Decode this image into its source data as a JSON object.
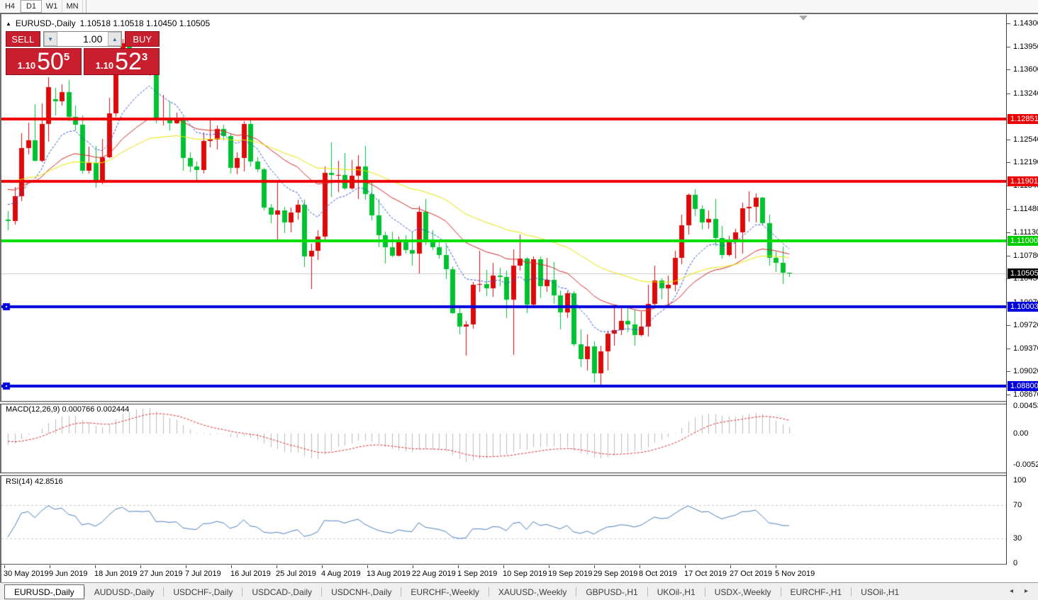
{
  "toolbar": {
    "timeframes": [
      {
        "label": "H4",
        "active": false
      },
      {
        "label": "D1",
        "active": true
      },
      {
        "label": "W1",
        "active": false
      },
      {
        "label": "MN",
        "active": false
      }
    ]
  },
  "chart_header": {
    "collapse_icon": "▲",
    "title": "EURUSD-,Daily",
    "ohlc_text": "1.10518 1.10518 1.10450 1.10505"
  },
  "trade_panel": {
    "sell_label": "SELL",
    "buy_label": "BUY",
    "volume": "1.00",
    "spin_down_icon": "▼",
    "spin_up_icon": "▲",
    "sell_price_prefix": "1.10",
    "sell_price_big": "50",
    "sell_price_sup": "5",
    "buy_price_prefix": "1.10",
    "buy_price_big": "52",
    "buy_price_sup": "3"
  },
  "chart_data": {
    "type": "candlestick",
    "symbol": "EURUSD-",
    "timeframe": "Daily",
    "colors": {
      "bull": "#dd0a0a",
      "bear": "#00c230",
      "ma_fast": "#2e4fd6",
      "ma_mid": "#d42a2a",
      "ma_slow": "#e6e600",
      "current_price_line": "#c9c9c9",
      "macd_histogram": "#bbbbbb",
      "macd_signal": "#e03030",
      "rsi_line": "#4a7ebb",
      "rsi_levels": "#c8c8c8"
    },
    "moving_averages": [
      {
        "period": 10,
        "style": "dashed",
        "color_key": "ma_fast"
      },
      {
        "period": 25,
        "style": "solid",
        "color_key": "ma_mid"
      },
      {
        "period": 48,
        "style": "solid",
        "color_key": "ma_slow"
      }
    ],
    "y_axis": {
      "ticks": [
        "1.14300",
        "1.13950",
        "1.13600",
        "1.13240",
        "1.12540",
        "1.12190",
        "1.11840",
        "1.11480",
        "1.11130",
        "1.10780",
        "1.10430",
        "1.10070",
        "1.09720",
        "1.09370",
        "1.09020",
        "1.08670"
      ],
      "top": 1.143,
      "bottom": 1.0867
    },
    "x_axis": {
      "labels": [
        "30 May 2019",
        "9 Jun 2019",
        "18 Jun 2019",
        "27 Jun 2019",
        "7 Jul 2019",
        "16 Jul 2019",
        "25 Jul 2019",
        "4 Aug 2019",
        "13 Aug 2019",
        "22 Aug 2019",
        "1 Sep 2019",
        "10 Sep 2019",
        "19 Sep 2019",
        "29 Sep 2019",
        "8 Oct 2019",
        "17 Oct 2019",
        "27 Oct 2019",
        "5 Nov 2019"
      ]
    },
    "price_badges": [
      {
        "label": "1.12851",
        "price": 1.12851,
        "color": "#ee0000"
      },
      {
        "label": "1.11901",
        "price": 1.11901,
        "color": "#ee0000"
      },
      {
        "label": "1.11000",
        "price": 1.11,
        "color": "#00cc00"
      },
      {
        "label": "1.10505",
        "price": 1.10505,
        "color": "#000000"
      },
      {
        "label": "1.10003",
        "price": 1.10003,
        "color": "#0000dd"
      },
      {
        "label": "1.08800",
        "price": 1.088,
        "color": "#0000dd"
      }
    ],
    "hlines": [
      {
        "price": 1.12851,
        "color": "#ee0000",
        "thickness": 4,
        "anchor": false
      },
      {
        "price": 1.11901,
        "color": "#ee0000",
        "thickness": 4,
        "anchor": false
      },
      {
        "price": 1.11,
        "color": "#00dd00",
        "thickness": 4,
        "anchor": false
      },
      {
        "price": 1.10003,
        "color": "#0000dd",
        "thickness": 4,
        "anchor": true
      },
      {
        "price": 1.088,
        "color": "#0000dd",
        "thickness": 4,
        "anchor": true
      }
    ],
    "current_price": 1.10505,
    "history_closes": [
      1.1217,
      1.1196,
      1.1185,
      1.12,
      1.1192,
      1.1215,
      1.1211,
      1.1203,
      1.1224,
      1.1206,
      1.1185,
      1.1179,
      1.1162,
      1.1158,
      1.1171,
      1.118,
      1.1166,
      1.1151,
      1.1139,
      1.1128
    ],
    "ohlc": [
      [
        "30 May",
        1.1132,
        1.1145,
        1.1116,
        1.113
      ],
      [
        "31 May",
        1.113,
        1.1182,
        1.1125,
        1.1168
      ],
      [
        "3 Jun",
        1.1168,
        1.1263,
        1.116,
        1.1241
      ],
      [
        "4 Jun",
        1.1241,
        1.128,
        1.1231,
        1.1253
      ],
      [
        "5 Jun",
        1.1253,
        1.1307,
        1.122,
        1.1222
      ],
      [
        "6 Jun",
        1.1222,
        1.1309,
        1.1219,
        1.1277
      ],
      [
        "7 Jun",
        1.1277,
        1.1348,
        1.1251,
        1.1333
      ],
      [
        "10 Jun",
        1.1315,
        1.1332,
        1.129,
        1.1312
      ],
      [
        "11 Jun",
        1.1312,
        1.1338,
        1.1305,
        1.1326
      ],
      [
        "12 Jun",
        1.1326,
        1.1344,
        1.1282,
        1.1288
      ],
      [
        "13 Jun",
        1.1288,
        1.1305,
        1.1268,
        1.1276
      ],
      [
        "14 Jun",
        1.1276,
        1.129,
        1.1202,
        1.1207
      ],
      [
        "17 Jun",
        1.1207,
        1.1243,
        1.1202,
        1.1218
      ],
      [
        "18 Jun",
        1.1218,
        1.1244,
        1.1181,
        1.1193
      ],
      [
        "19 Jun",
        1.1193,
        1.1255,
        1.1186,
        1.1227
      ],
      [
        "20 Jun",
        1.1227,
        1.1317,
        1.1226,
        1.1294
      ],
      [
        "21 Jun",
        1.1294,
        1.1378,
        1.1288,
        1.1369
      ],
      [
        "24 Jun",
        1.1369,
        1.1406,
        1.1363,
        1.14
      ],
      [
        "25 Jun",
        1.14,
        1.1412,
        1.1359,
        1.1365
      ],
      [
        "26 Jun",
        1.1365,
        1.1391,
        1.1359,
        1.137
      ],
      [
        "27 Jun",
        1.137,
        1.1389,
        1.1361,
        1.1367
      ],
      [
        "28 Jun",
        1.1367,
        1.1391,
        1.1351,
        1.1373
      ],
      [
        "1 Jul",
        1.1365,
        1.1368,
        1.1279,
        1.1285
      ],
      [
        "2 Jul",
        1.1285,
        1.1322,
        1.1275,
        1.1286
      ],
      [
        "3 Jul",
        1.1286,
        1.1312,
        1.1268,
        1.1278
      ],
      [
        "4 Jul",
        1.1278,
        1.1295,
        1.1277,
        1.1283
      ],
      [
        "5 Jul",
        1.1283,
        1.1288,
        1.1207,
        1.1226
      ],
      [
        "8 Jul",
        1.1226,
        1.1234,
        1.1204,
        1.1213
      ],
      [
        "9 Jul",
        1.1213,
        1.122,
        1.1193,
        1.1208
      ],
      [
        "10 Jul",
        1.1208,
        1.1264,
        1.1202,
        1.1252
      ],
      [
        "11 Jul",
        1.1252,
        1.1286,
        1.1242,
        1.1254
      ],
      [
        "12 Jul",
        1.1254,
        1.1275,
        1.1239,
        1.127
      ],
      [
        "15 Jul",
        1.127,
        1.1276,
        1.1253,
        1.1259
      ],
      [
        "16 Jul",
        1.1259,
        1.1263,
        1.1202,
        1.1211
      ],
      [
        "17 Jul",
        1.1211,
        1.1234,
        1.1201,
        1.1226
      ],
      [
        "18 Jul",
        1.1226,
        1.1282,
        1.1205,
        1.1277
      ],
      [
        "19 Jul",
        1.1277,
        1.1283,
        1.1213,
        1.1221
      ],
      [
        "22 Jul",
        1.1221,
        1.1227,
        1.1204,
        1.1209
      ],
      [
        "23 Jul",
        1.1209,
        1.1211,
        1.1146,
        1.1151
      ],
      [
        "24 Jul",
        1.1151,
        1.1156,
        1.1127,
        1.114
      ],
      [
        "25 Jul",
        1.114,
        1.1188,
        1.1101,
        1.1146
      ],
      [
        "26 Jul",
        1.1146,
        1.1152,
        1.1112,
        1.1128
      ],
      [
        "29 Jul",
        1.1128,
        1.1151,
        1.1113,
        1.1143
      ],
      [
        "30 Jul",
        1.1143,
        1.1162,
        1.1132,
        1.1155
      ],
      [
        "31 Jul",
        1.1155,
        1.1162,
        1.106,
        1.1076
      ],
      [
        "1 Aug",
        1.1076,
        1.1096,
        1.1027,
        1.1085
      ],
      [
        "2 Aug",
        1.1085,
        1.1116,
        1.1071,
        1.1107
      ],
      [
        "5 Aug",
        1.1107,
        1.1213,
        1.1101,
        1.1203
      ],
      [
        "6 Aug",
        1.1203,
        1.125,
        1.1167,
        1.12
      ],
      [
        "7 Aug",
        1.12,
        1.1222,
        1.1174,
        1.12
      ],
      [
        "8 Aug",
        1.12,
        1.1233,
        1.1178,
        1.118
      ],
      [
        "9 Aug",
        1.118,
        1.1223,
        1.1178,
        1.1199
      ],
      [
        "12 Aug",
        1.1199,
        1.123,
        1.1163,
        1.1213
      ],
      [
        "13 Aug",
        1.1213,
        1.1244,
        1.1162,
        1.1171
      ],
      [
        "14 Aug",
        1.1171,
        1.1192,
        1.1131,
        1.1139
      ],
      [
        "15 Aug",
        1.1139,
        1.1163,
        1.109,
        1.1109
      ],
      [
        "16 Aug",
        1.1109,
        1.1114,
        1.1066,
        1.109
      ],
      [
        "19 Aug",
        1.109,
        1.1114,
        1.1075,
        1.1078
      ],
      [
        "20 Aug",
        1.1078,
        1.1107,
        1.1077,
        1.11
      ],
      [
        "21 Aug",
        1.11,
        1.1109,
        1.1081,
        1.1086
      ],
      [
        "22 Aug",
        1.1086,
        1.1113,
        1.1062,
        1.1081
      ],
      [
        "23 Aug",
        1.1081,
        1.1153,
        1.1051,
        1.1144
      ],
      [
        "26 Aug",
        1.1144,
        1.1164,
        1.1094,
        1.1101
      ],
      [
        "27 Aug",
        1.1101,
        1.1116,
        1.1086,
        1.1091
      ],
      [
        "28 Aug",
        1.1091,
        1.1098,
        1.1073,
        1.1079
      ],
      [
        "29 Aug",
        1.1079,
        1.1094,
        1.1042,
        1.1057
      ],
      [
        "30 Aug",
        1.1057,
        1.1061,
        1.0989,
        1.0991
      ],
      [
        "2 Sep",
        1.0991,
        1.0998,
        1.0958,
        1.097
      ],
      [
        "3 Sep",
        1.097,
        1.0979,
        1.0926,
        1.0973
      ],
      [
        "4 Sep",
        1.0973,
        1.1038,
        1.0967,
        1.1034
      ],
      [
        "5 Sep",
        1.1034,
        1.1085,
        1.1023,
        1.1035
      ],
      [
        "6 Sep",
        1.1035,
        1.1056,
        1.1016,
        1.1028
      ],
      [
        "9 Sep",
        1.1028,
        1.1067,
        1.1015,
        1.1048
      ],
      [
        "10 Sep",
        1.1048,
        1.1059,
        1.1031,
        1.1045
      ],
      [
        "11 Sep",
        1.1045,
        1.1055,
        1.0983,
        1.1011
      ],
      [
        "12 Sep",
        1.1011,
        1.1087,
        1.0927,
        1.1063
      ],
      [
        "13 Sep",
        1.1063,
        1.111,
        1.1055,
        1.1073
      ],
      [
        "16 Sep",
        1.1073,
        1.1075,
        1.0991,
        1.1003
      ],
      [
        "17 Sep",
        1.1003,
        1.1076,
        1.0998,
        1.1072
      ],
      [
        "18 Sep",
        1.1072,
        1.1076,
        1.1013,
        1.1031
      ],
      [
        "19 Sep",
        1.1031,
        1.1074,
        1.1023,
        1.1041
      ],
      [
        "20 Sep",
        1.1041,
        1.1068,
        1.1004,
        1.1017
      ],
      [
        "23 Sep",
        1.1017,
        1.1025,
        1.0966,
        1.0992
      ],
      [
        "24 Sep",
        1.0992,
        1.1024,
        1.0983,
        1.1021
      ],
      [
        "25 Sep",
        1.1021,
        1.1024,
        1.094,
        1.0943
      ],
      [
        "26 Sep",
        1.0943,
        1.0966,
        1.0909,
        1.0921
      ],
      [
        "27 Sep",
        1.0921,
        1.0958,
        1.0904,
        1.094
      ],
      [
        "30 Sep",
        1.094,
        1.0948,
        1.0885,
        1.0899
      ],
      [
        "1 Oct",
        1.0899,
        1.0941,
        1.0879,
        1.0932
      ],
      [
        "2 Oct",
        1.0932,
        1.0964,
        1.0903,
        1.0959
      ],
      [
        "3 Oct",
        1.0959,
        1.0999,
        1.0941,
        1.0965
      ],
      [
        "4 Oct",
        1.0965,
        1.0999,
        1.0957,
        1.0979
      ],
      [
        "7 Oct",
        1.0979,
        1.1,
        1.0962,
        1.0973
      ],
      [
        "8 Oct",
        1.0973,
        1.0996,
        1.0941,
        1.0957
      ],
      [
        "9 Oct",
        1.0957,
        1.0993,
        1.0955,
        1.097
      ],
      [
        "10 Oct",
        1.097,
        1.1034,
        1.0955,
        1.1004
      ],
      [
        "11 Oct",
        1.1004,
        1.1063,
        1.1002,
        1.104
      ],
      [
        "14 Oct",
        1.104,
        1.1043,
        1.1012,
        1.1028
      ],
      [
        "15 Oct",
        1.1028,
        1.1047,
        1.1001,
        1.1034
      ],
      [
        "16 Oct",
        1.1034,
        1.1085,
        1.1024,
        1.1074
      ],
      [
        "17 Oct",
        1.1074,
        1.114,
        1.1065,
        1.1124
      ],
      [
        "18 Oct",
        1.1124,
        1.1172,
        1.111,
        1.117
      ],
      [
        "21 Oct",
        1.117,
        1.1179,
        1.1138,
        1.1149
      ],
      [
        "22 Oct",
        1.1149,
        1.1154,
        1.1117,
        1.1128
      ],
      [
        "23 Oct",
        1.1128,
        1.1146,
        1.1118,
        1.1133
      ],
      [
        "24 Oct",
        1.1133,
        1.1163,
        1.1093,
        1.1104
      ],
      [
        "25 Oct",
        1.1104,
        1.1123,
        1.1073,
        1.1079
      ],
      [
        "28 Oct",
        1.1079,
        1.1108,
        1.1076,
        1.1099
      ],
      [
        "29 Oct",
        1.1099,
        1.1118,
        1.1073,
        1.1113
      ],
      [
        "30 Oct",
        1.1113,
        1.1158,
        1.1081,
        1.115
      ],
      [
        "31 Oct",
        1.115,
        1.1175,
        1.1129,
        1.1152
      ],
      [
        "1 Nov",
        1.1152,
        1.1172,
        1.1128,
        1.1166
      ],
      [
        "4 Nov",
        1.1166,
        1.1167,
        1.1125,
        1.1127
      ],
      [
        "5 Nov",
        1.1127,
        1.114,
        1.1063,
        1.1074
      ],
      [
        "6 Nov",
        1.1074,
        1.1084,
        1.1053,
        1.1067
      ],
      [
        "7 Nov",
        1.1067,
        1.1092,
        1.1035,
        1.1052
      ],
      [
        "8 Nov",
        1.10518,
        1.10518,
        1.1045,
        1.10505
      ]
    ],
    "indicators": [
      {
        "name": "MACD",
        "label": "MACD(12,26,9) 0.000766 0.002444",
        "params": [
          12,
          26,
          9
        ],
        "main_value": 0.000766,
        "signal_value": 0.002444,
        "axis_labels": [
          "0.004536",
          "0.00",
          "-0.005205"
        ],
        "axis_values": [
          0.004536,
          0,
          -0.005205
        ]
      },
      {
        "name": "RSI",
        "label": "RSI(14) 42.8516",
        "period": 14,
        "value": 42.8516,
        "axis_labels": [
          "100",
          "70",
          "30",
          "0"
        ],
        "axis_values": [
          100,
          70,
          30,
          0
        ],
        "levels": [
          70,
          30
        ]
      }
    ]
  },
  "bottom_tabs": {
    "tabs": [
      {
        "label": "EURUSD-,Daily",
        "active": true
      },
      {
        "label": "AUDUSD-,Daily",
        "active": false
      },
      {
        "label": "USDCHF-,Daily",
        "active": false
      },
      {
        "label": "USDCAD-,Daily",
        "active": false
      },
      {
        "label": "USDCNH-,Daily",
        "active": false
      },
      {
        "label": "EURCHF-,Weekly",
        "active": false
      },
      {
        "label": "XAUUSD-,Weekly",
        "active": false
      },
      {
        "label": "GBPUSD-,H1",
        "active": false
      },
      {
        "label": "UKOil-,H1",
        "active": false
      },
      {
        "label": "USDX-,Weekly",
        "active": false
      },
      {
        "label": "EURCHF-,H1",
        "active": false
      },
      {
        "label": "USOil-,H1",
        "active": false
      }
    ],
    "scroll_left_icon": "◂",
    "scroll_right_icon": "▸"
  }
}
